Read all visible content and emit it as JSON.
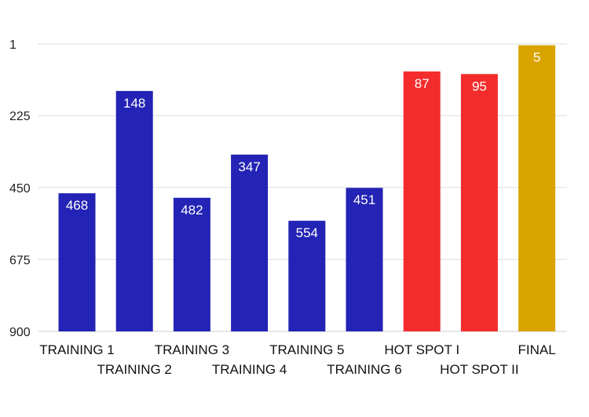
{
  "chart_data": {
    "type": "bar",
    "title": "",
    "xlabel": "",
    "ylabel": "",
    "y_axis_reversed": true,
    "ylim": [
      1,
      900
    ],
    "yticks": [
      1,
      225,
      450,
      675,
      900
    ],
    "grid": true,
    "legend": "none",
    "categories": [
      "TRAINING 1",
      "TRAINING 2",
      "TRAINING 3",
      "TRAINING 4",
      "TRAINING 5",
      "TRAINING 6",
      "HOT SPOT I",
      "HOT SPOT II",
      "FINAL"
    ],
    "values": [
      468,
      148,
      482,
      347,
      554,
      451,
      87,
      95,
      5
    ],
    "data_labels": [
      "468",
      "148",
      "482",
      "347",
      "554",
      "451",
      "87",
      "95",
      "5"
    ],
    "bar_colors": [
      "#2323b5",
      "#2323b5",
      "#2323b5",
      "#2323b5",
      "#2323b5",
      "#2323b5",
      "#f52c2c",
      "#f52c2c",
      "#d9a400"
    ]
  },
  "colors": {
    "training": "#2323b5",
    "hot_spot": "#f52c2c",
    "final": "#d9a400",
    "grid": "#dddddd"
  }
}
